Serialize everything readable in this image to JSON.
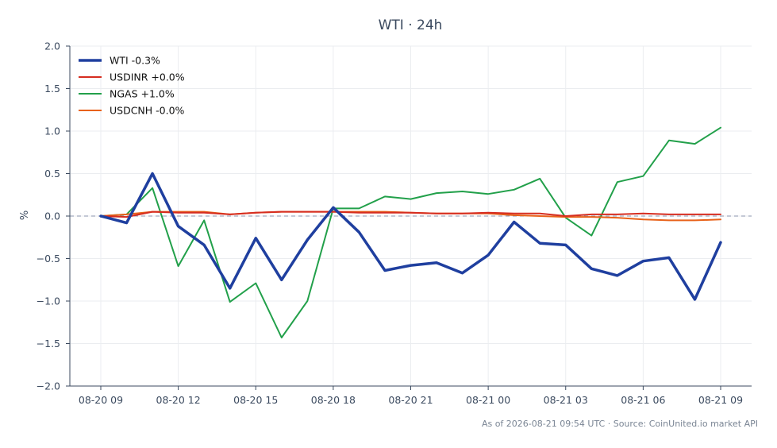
{
  "chart_data": {
    "type": "line",
    "title": "WTI · 24h",
    "ylabel": "%",
    "xlabel": "",
    "ylim": [
      -2.0,
      2.0
    ],
    "yticks": [
      -2.0,
      -1.5,
      -1.0,
      -0.5,
      0.0,
      0.5,
      1.0,
      1.5,
      2.0
    ],
    "ytick_labels": [
      "−2.0",
      "−1.5",
      "−1.0",
      "−0.5",
      "0.0",
      "0.5",
      "1.0",
      "1.5",
      "2.0"
    ],
    "x": [
      "08-20 09",
      "08-20 10",
      "08-20 11",
      "08-20 12",
      "08-20 13",
      "08-20 14",
      "08-20 15",
      "08-20 16",
      "08-20 17",
      "08-20 18",
      "08-20 19",
      "08-20 20",
      "08-20 21",
      "08-20 22",
      "08-20 23",
      "08-21 00",
      "08-21 01",
      "08-21 02",
      "08-21 03",
      "08-21 04",
      "08-21 05",
      "08-21 06",
      "08-21 07",
      "08-21 08",
      "08-21 09"
    ],
    "xticks": [
      "08-20 09",
      "08-20 12",
      "08-20 15",
      "08-20 18",
      "08-20 21",
      "08-21 00",
      "08-21 03",
      "08-21 06",
      "08-21 09"
    ],
    "grid": true,
    "legend_position": "top-left",
    "zero_line": true,
    "series": [
      {
        "name": "WTI -0.3%",
        "color": "#1f3f9f",
        "width": 3.5,
        "values": [
          0.0,
          -0.08,
          0.5,
          -0.12,
          -0.34,
          -0.85,
          -0.26,
          -0.75,
          -0.28,
          0.1,
          -0.19,
          -0.64,
          -0.58,
          -0.55,
          -0.67,
          -0.46,
          -0.07,
          -0.32,
          -0.34,
          -0.62,
          -0.7,
          -0.53,
          -0.49,
          -0.98,
          -0.31
        ]
      },
      {
        "name": "USDINR +0.0%",
        "color": "#d62d20",
        "width": 2,
        "values": [
          0.0,
          -0.01,
          0.05,
          0.04,
          0.04,
          0.02,
          0.04,
          0.05,
          0.05,
          0.05,
          0.04,
          0.04,
          0.04,
          0.03,
          0.03,
          0.04,
          0.03,
          0.03,
          0.0,
          0.02,
          0.02,
          0.03,
          0.02,
          0.02,
          0.02
        ]
      },
      {
        "name": "NGAS +1.0%",
        "color": "#22a04a",
        "width": 2,
        "values": [
          0.0,
          0.02,
          0.33,
          -0.59,
          -0.05,
          -1.01,
          -0.79,
          -1.43,
          -1.0,
          0.09,
          0.09,
          0.23,
          0.2,
          0.27,
          0.29,
          0.26,
          0.31,
          0.44,
          -0.02,
          -0.23,
          0.4,
          0.47,
          0.89,
          0.85,
          1.04
        ]
      },
      {
        "name": "USDCNH -0.0%",
        "color": "#e8621a",
        "width": 2,
        "values": [
          0.0,
          0.02,
          0.05,
          0.05,
          0.05,
          0.02,
          0.04,
          0.05,
          0.05,
          0.05,
          0.05,
          0.05,
          0.04,
          0.03,
          0.03,
          0.03,
          0.01,
          0.0,
          -0.01,
          -0.01,
          -0.02,
          -0.04,
          -0.05,
          -0.05,
          -0.04
        ]
      }
    ]
  },
  "footnote": "As of 2026-08-21 09:54 UTC · Source: CoinUnited.io market API"
}
